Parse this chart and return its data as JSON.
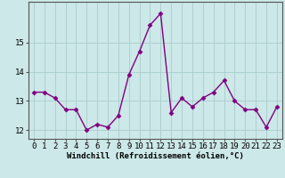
{
  "x": [
    0,
    1,
    2,
    3,
    4,
    5,
    6,
    7,
    8,
    9,
    10,
    11,
    12,
    13,
    14,
    15,
    16,
    17,
    18,
    19,
    20,
    21,
    22,
    23
  ],
  "y": [
    13.3,
    13.3,
    13.1,
    12.7,
    12.7,
    12.0,
    12.2,
    12.1,
    12.5,
    13.9,
    14.7,
    15.6,
    16.0,
    12.6,
    13.1,
    12.8,
    13.1,
    13.3,
    13.7,
    13.0,
    12.7,
    12.7,
    12.1,
    12.8
  ],
  "line_color": "#800080",
  "marker": "D",
  "marker_size": 2.5,
  "bg_color": "#cce8e8",
  "grid_color": "#aacccc",
  "xlabel": "Windchill (Refroidissement éolien,°C)",
  "xlim": [
    -0.5,
    23.5
  ],
  "ylim": [
    11.7,
    16.4
  ],
  "yticks": [
    12,
    13,
    14,
    15
  ],
  "xticks": [
    0,
    1,
    2,
    3,
    4,
    5,
    6,
    7,
    8,
    9,
    10,
    11,
    12,
    13,
    14,
    15,
    16,
    17,
    18,
    19,
    20,
    21,
    22,
    23
  ],
  "xlabel_fontsize": 6.5,
  "tick_fontsize": 6.5,
  "linewidth": 1.0
}
